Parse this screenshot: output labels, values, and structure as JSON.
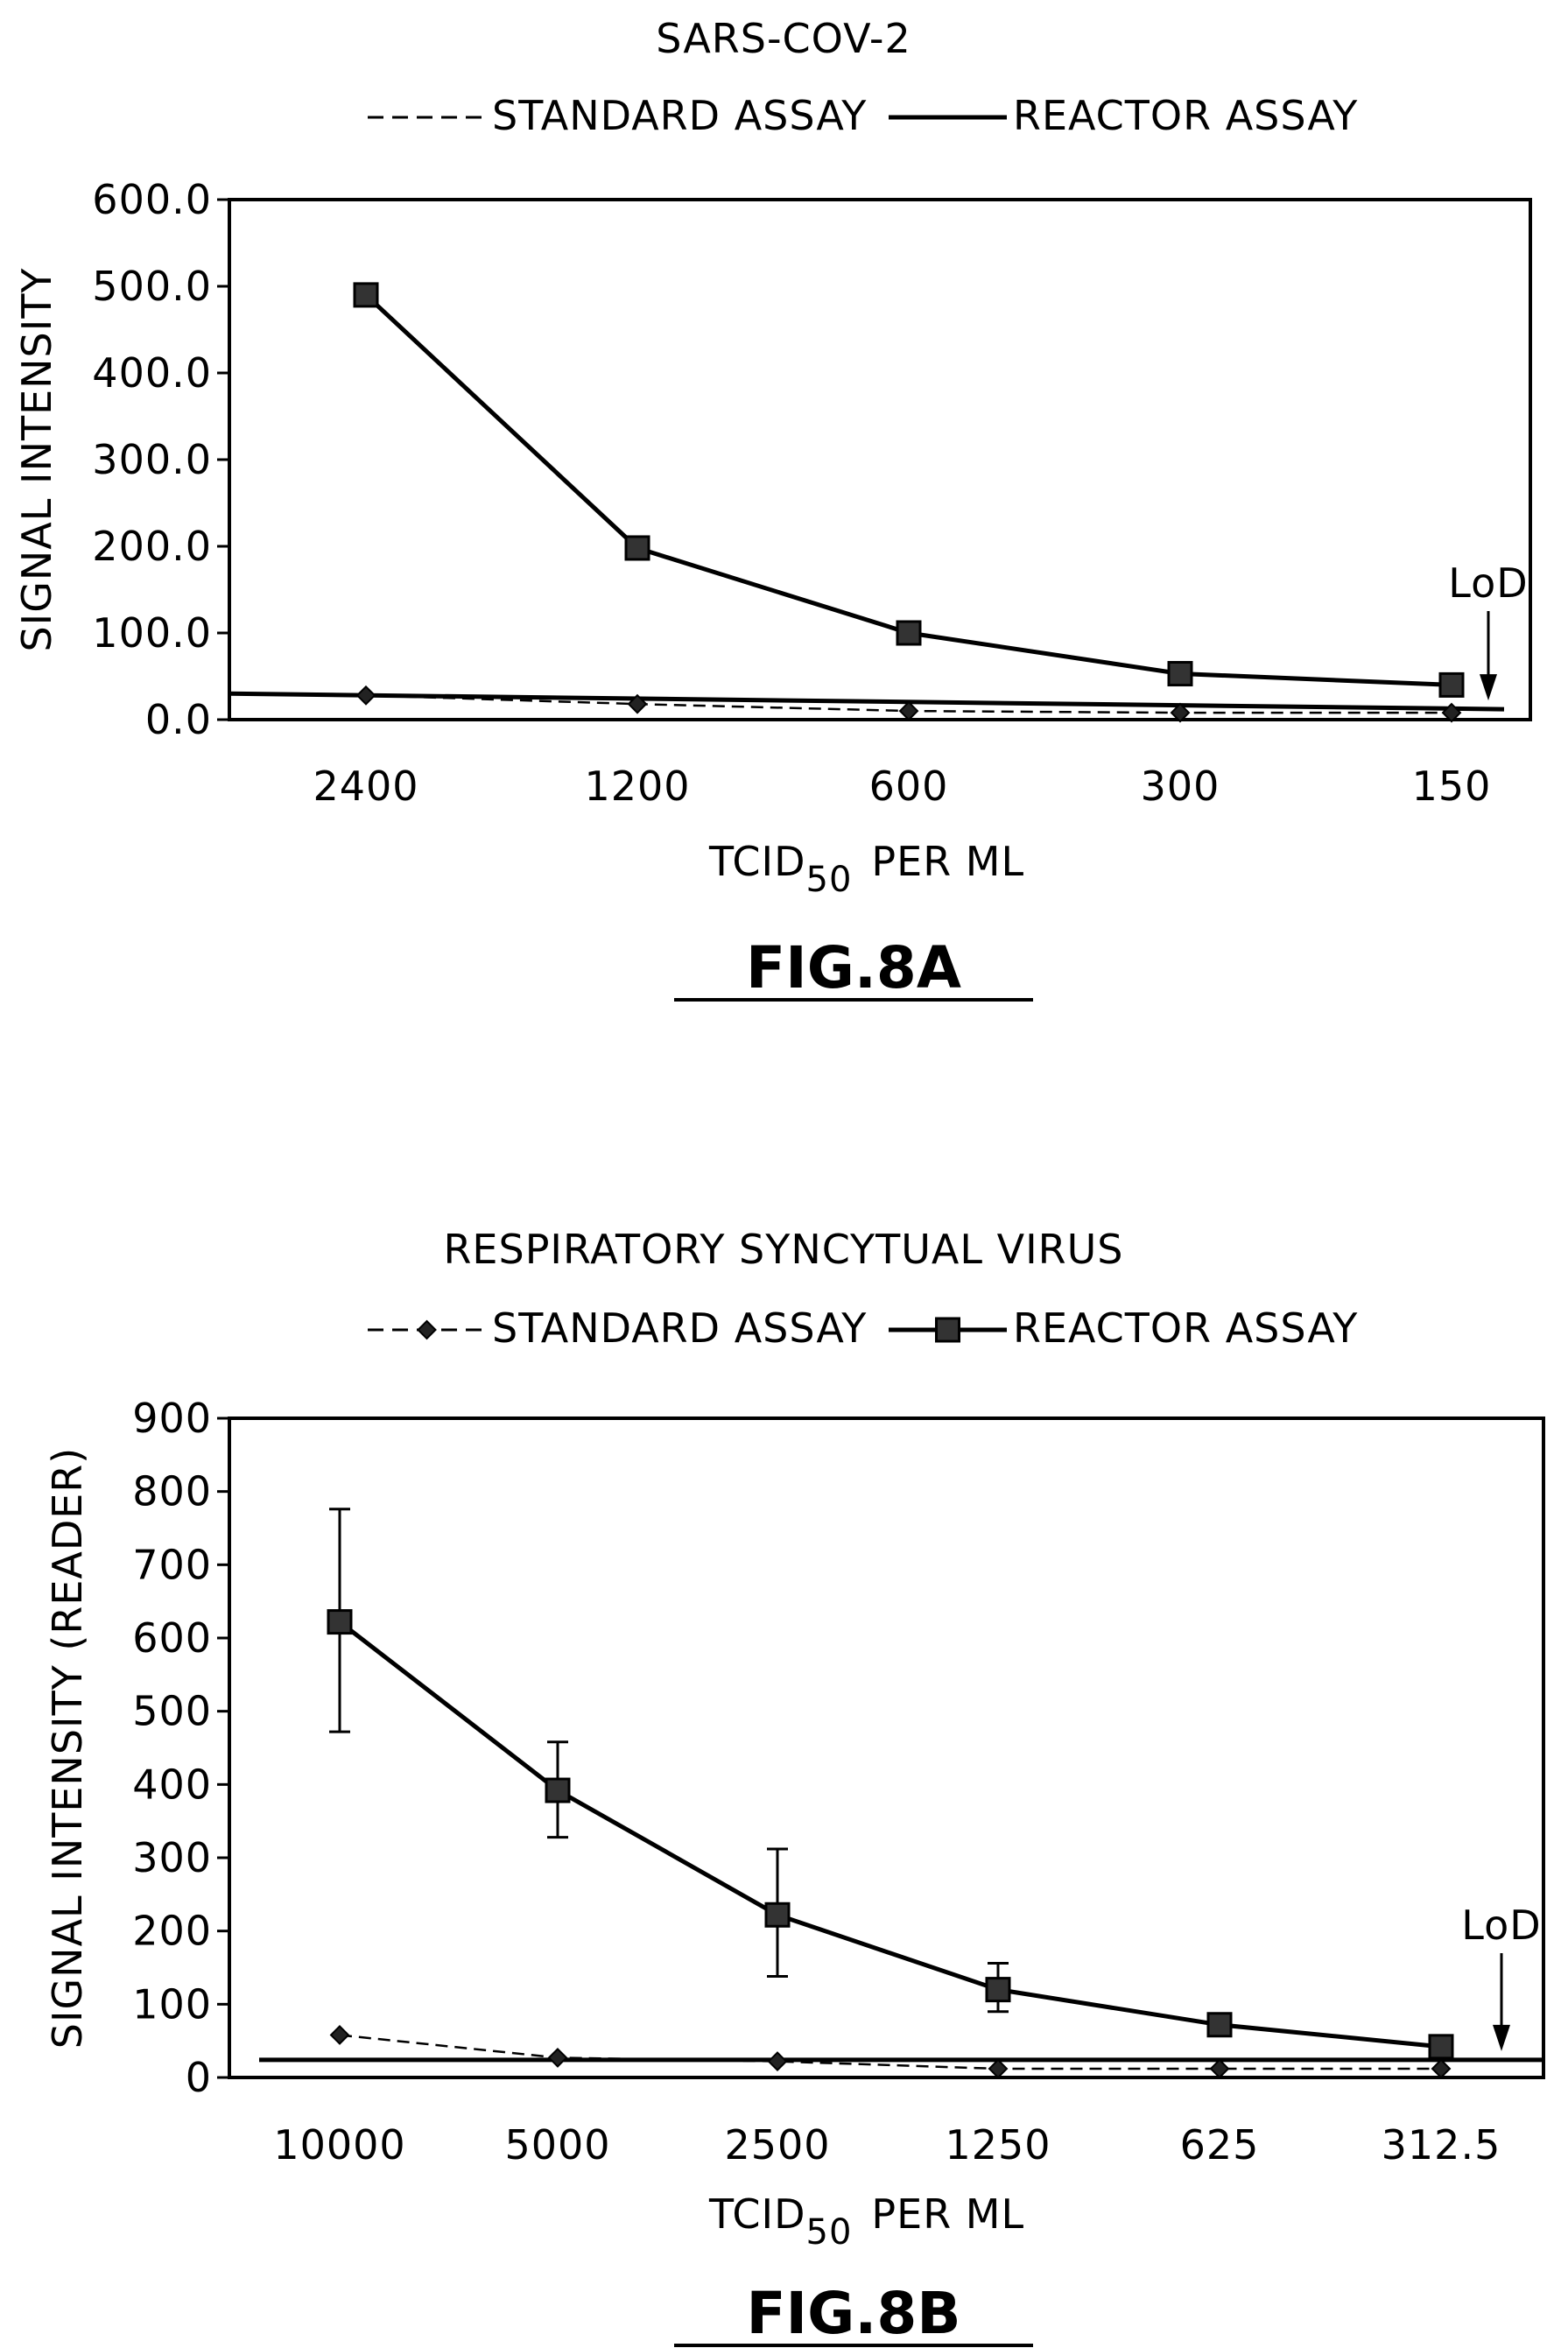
{
  "chart_data": [
    {
      "type": "line",
      "title": "SARS-COV-2",
      "legend": {
        "placement": "top",
        "entries": [
          {
            "label": "STANDARD ASSAY",
            "style": "dashed"
          },
          {
            "label": "REACTOR ASSAY",
            "style": "solid"
          }
        ]
      },
      "xlabel": "TCID",
      "xlabel_sub": "50",
      "xlabel_suffix": "PER ML",
      "ylabel": "SIGNAL INTENSITY",
      "categories": [
        "2400",
        "1200",
        "600",
        "300",
        "150"
      ],
      "y_ticks": [
        "0.0",
        "100.0",
        "200.0",
        "300.0",
        "400.0",
        "500.0",
        "600.0"
      ],
      "ylim": [
        0,
        600
      ],
      "series": [
        {
          "name": "STANDARD ASSAY",
          "values": [
            28,
            18,
            10,
            8,
            8
          ],
          "marker": "diamond",
          "line": "dashed"
        },
        {
          "name": "REACTOR ASSAY",
          "values": [
            490,
            198,
            100,
            53,
            40
          ],
          "marker": "square",
          "line": "solid"
        }
      ],
      "baseline": {
        "start": 30,
        "end": 12
      },
      "annotation": "LoD",
      "figure_label": "FIG.8A",
      "grid": false
    },
    {
      "type": "line",
      "title": "RESPIRATORY SYNCYTUAL VIRUS",
      "legend": {
        "placement": "top",
        "entries": [
          {
            "label": "STANDARD ASSAY",
            "style": "dashed",
            "marker": "diamond"
          },
          {
            "label": "REACTOR ASSAY",
            "style": "solid",
            "marker": "square"
          }
        ]
      },
      "xlabel": "TCID",
      "xlabel_sub": "50",
      "xlabel_suffix": "PER ML",
      "ylabel": "SIGNAL INTENSITY (READER)",
      "categories": [
        "10000",
        "5000",
        "2500",
        "1250",
        "625",
        "312.5"
      ],
      "y_ticks": [
        "0",
        "100",
        "200",
        "300",
        "400",
        "500",
        "600",
        "700",
        "800",
        "900"
      ],
      "ylim": [
        0,
        900
      ],
      "series": [
        {
          "name": "STANDARD ASSAY",
          "values": [
            58,
            27,
            22,
            12,
            12,
            12
          ],
          "marker": "diamond",
          "line": "dashed"
        },
        {
          "name": "REACTOR ASSAY",
          "values": [
            622,
            392,
            222,
            120,
            72,
            42
          ],
          "marker": "square",
          "line": "solid",
          "error_low": [
            472,
            328,
            138,
            90,
            null,
            null
          ],
          "error_high": [
            776,
            458,
            312,
            156,
            null,
            null
          ]
        }
      ],
      "baseline": {
        "start": 24,
        "end": 24
      },
      "annotation": "LoD",
      "figure_label": "FIG.8B",
      "grid": false
    }
  ]
}
